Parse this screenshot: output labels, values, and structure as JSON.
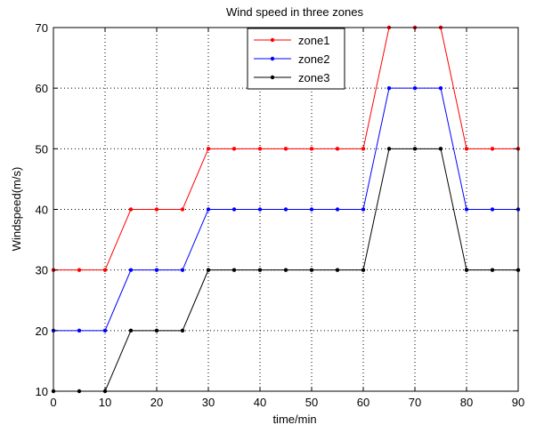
{
  "chart_data": {
    "type": "line",
    "title": "Wind speed in three zones",
    "xlabel": "time/min",
    "ylabel": "Windspeed(m/s)",
    "x": [
      0,
      5,
      10,
      15,
      20,
      25,
      30,
      35,
      40,
      45,
      50,
      55,
      60,
      65,
      70,
      75,
      80,
      85,
      90
    ],
    "xlim": [
      0,
      90
    ],
    "ylim": [
      10,
      70
    ],
    "xticks": [
      0,
      10,
      20,
      30,
      40,
      50,
      60,
      70,
      80,
      90
    ],
    "yticks": [
      10,
      20,
      30,
      40,
      50,
      60,
      70
    ],
    "grid": true,
    "grid_style": "dotted",
    "legend_position": "top-center",
    "series": [
      {
        "name": "zone1",
        "color": "#ff0000",
        "marker": "dot",
        "values": [
          30,
          30,
          30,
          40,
          40,
          40,
          50,
          50,
          50,
          50,
          50,
          50,
          50,
          70,
          70,
          70,
          50,
          50,
          50
        ]
      },
      {
        "name": "zone2",
        "color": "#0000ff",
        "marker": "dot",
        "values": [
          20,
          20,
          20,
          30,
          30,
          30,
          40,
          40,
          40,
          40,
          40,
          40,
          40,
          60,
          60,
          60,
          40,
          40,
          40
        ]
      },
      {
        "name": "zone3",
        "color": "#000000",
        "marker": "dot",
        "values": [
          10,
          10,
          10,
          20,
          20,
          20,
          30,
          30,
          30,
          30,
          30,
          30,
          30,
          50,
          50,
          50,
          30,
          30,
          30
        ]
      }
    ]
  }
}
